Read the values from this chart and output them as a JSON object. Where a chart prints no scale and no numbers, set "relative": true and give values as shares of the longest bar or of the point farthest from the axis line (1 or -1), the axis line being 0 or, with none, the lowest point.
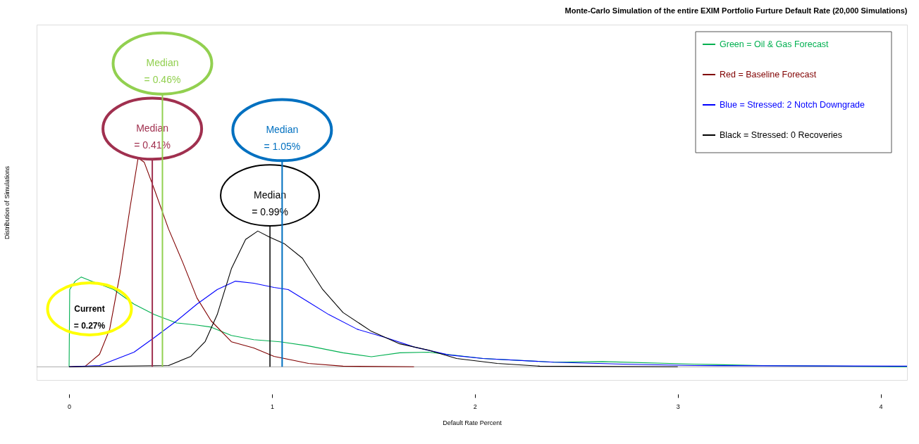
{
  "chart_data": {
    "type": "line",
    "title": "Monte-Carlo Simulation of the entire EXIM Portfolio Furture Default Rate (20,000 Simulations)",
    "xlabel": "Default Rate Percent",
    "ylabel": "Distribution of Simulations",
    "relative": true,
    "xlim": [
      -0.16,
      4.13
    ],
    "xticks": [
      {
        "value": 0,
        "label": "0"
      },
      {
        "value": 1,
        "label": "1"
      },
      {
        "value": 2,
        "label": "2"
      },
      {
        "value": 3,
        "label": "3"
      },
      {
        "value": 4,
        "label": "4"
      }
    ],
    "grid": false,
    "legend": "top right",
    "line_style": "solid",
    "marker": "none",
    "series": [
      {
        "name": "Green = Oil & Gas Forecast",
        "color": "#00b050",
        "x": [
          0,
          0.003,
          0.03,
          0.06,
          0.11,
          0.22,
          0.32,
          0.42,
          0.53,
          0.63,
          0.7,
          0.8,
          0.91,
          1.04,
          1.18,
          1.35,
          1.49,
          1.63,
          1.77,
          2.04,
          2.39,
          2.63,
          3.08,
          3.42,
          3.77,
          4.13
        ],
        "values": [
          0,
          0.37,
          0.41,
          0.43,
          0.41,
          0.37,
          0.3,
          0.25,
          0.21,
          0.2,
          0.19,
          0.15,
          0.13,
          0.12,
          0.1,
          0.067,
          0.048,
          0.067,
          0.07,
          0.04,
          0.022,
          0.025,
          0.013,
          0.006,
          0.003,
          0
        ]
      },
      {
        "name": "Red = Baseline Forecast",
        "color": "#800000",
        "x": [
          0,
          0.08,
          0.15,
          0.2,
          0.25,
          0.3,
          0.34,
          0.37,
          0.42,
          0.49,
          0.56,
          0.63,
          0.7,
          0.8,
          0.91,
          1.01,
          1.18,
          1.35,
          1.7
        ],
        "values": [
          0,
          0.003,
          0.06,
          0.18,
          0.44,
          0.76,
          1.0,
          0.98,
          0.85,
          0.66,
          0.5,
          0.33,
          0.22,
          0.12,
          0.09,
          0.05,
          0.016,
          0.003,
          0
        ]
      },
      {
        "name": "Blue = Stressed: 2 Notch Downgrade",
        "color": "#0000ff",
        "x": [
          0,
          0.15,
          0.32,
          0.42,
          0.53,
          0.63,
          0.73,
          0.82,
          0.91,
          1.01,
          1.08,
          1.18,
          1.28,
          1.42,
          1.56,
          1.7,
          1.87,
          2.04,
          2.39,
          2.73,
          3.08,
          4.13
        ],
        "values": [
          0,
          0.006,
          0.07,
          0.14,
          0.22,
          0.3,
          0.37,
          0.41,
          0.4,
          0.38,
          0.37,
          0.31,
          0.25,
          0.18,
          0.14,
          0.095,
          0.057,
          0.04,
          0.022,
          0.013,
          0.006,
          0.003
        ]
      },
      {
        "name": "Black = Stressed: 0 Recoveries",
        "color": "#000000",
        "x": [
          0,
          0.49,
          0.6,
          0.67,
          0.73,
          0.8,
          0.87,
          0.93,
          0.99,
          1.06,
          1.15,
          1.25,
          1.35,
          1.49,
          1.63,
          1.77,
          1.91,
          2.11,
          2.32,
          3.0
        ],
        "values": [
          0,
          0.006,
          0.05,
          0.12,
          0.25,
          0.47,
          0.61,
          0.65,
          0.62,
          0.59,
          0.52,
          0.37,
          0.26,
          0.17,
          0.11,
          0.08,
          0.04,
          0.016,
          0.003,
          0
        ]
      }
    ],
    "ref_lines": [
      {
        "axis": "x",
        "value": 0.41,
        "color": "#a0304f",
        "label": "Median\n= 0.41%"
      },
      {
        "axis": "x",
        "value": 0.46,
        "color": "#92d050",
        "label": "Median\n= 0.46%"
      },
      {
        "axis": "x",
        "value": 0.99,
        "color": "#000000",
        "label": "Median\n= 0.99%"
      },
      {
        "axis": "x",
        "value": 1.05,
        "color": "#0070c0",
        "label": "Median\n= 1.05%"
      }
    ],
    "annotations": [
      "Current\n= 0.27%"
    ]
  }
}
